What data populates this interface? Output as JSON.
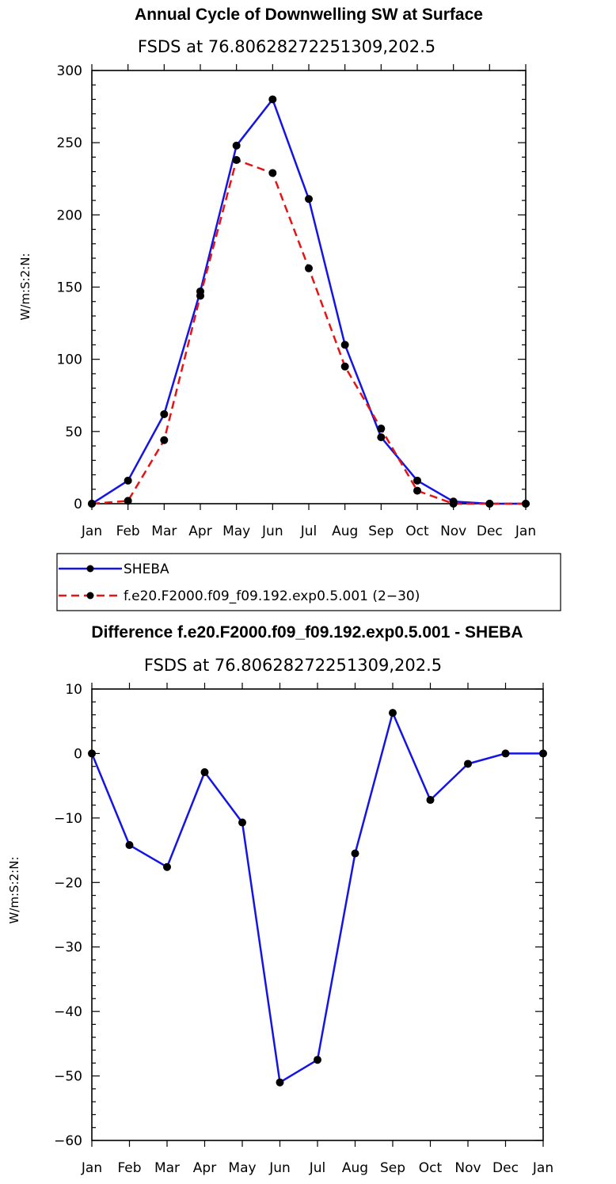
{
  "chart_data": [
    {
      "type": "line",
      "title": "Annual Cycle of Downwelling SW at Surface",
      "subtitle": "FSDS at 76.80628272251309,202.5",
      "xlabel": "",
      "ylabel": "W/m:S:2:N:",
      "categories": [
        "Jan",
        "Feb",
        "Mar",
        "Apr",
        "May",
        "Jun",
        "Jul",
        "Aug",
        "Sep",
        "Oct",
        "Nov",
        "Dec",
        "Jan"
      ],
      "ylim": [
        0,
        300
      ],
      "yticks": [
        "0",
        "50",
        "100",
        "150",
        "200",
        "250",
        "300"
      ],
      "series": [
        {
          "name": "SHEBA",
          "color": "#1414e6",
          "dash": "solid",
          "values": [
            0,
            16,
            62,
            147,
            248,
            280,
            211,
            110,
            46,
            16,
            1.5,
            0,
            0
          ]
        },
        {
          "name": "f.e20.F2000.f09_f09.192.exp0.5.001 (2−30)",
          "color": "#e61414",
          "dash": "dashed",
          "values": [
            0,
            2,
            44,
            144,
            238,
            229,
            163,
            95,
            52,
            9,
            0,
            0,
            0
          ]
        }
      ],
      "legend": "below"
    },
    {
      "type": "line",
      "title": "Difference f.e20.F2000.f09_f09.192.exp0.5.001 - SHEBA",
      "subtitle": "FSDS at 76.80628272251309,202.5",
      "xlabel": "",
      "ylabel": "W/m:S:2:N:",
      "categories": [
        "Jan",
        "Feb",
        "Mar",
        "Apr",
        "May",
        "Jun",
        "Jul",
        "Aug",
        "Sep",
        "Oct",
        "Nov",
        "Dec",
        "Jan"
      ],
      "ylim": [
        -60,
        10
      ],
      "yticks": [
        "−60",
        "−50",
        "−40",
        "−30",
        "−20",
        "−10",
        "0",
        "10"
      ],
      "series": [
        {
          "name": "Difference",
          "color": "#1414e6",
          "dash": "solid",
          "values": [
            0,
            -14.2,
            -17.6,
            -2.9,
            -10.7,
            -51,
            -47.5,
            -15.5,
            6.3,
            -7.2,
            -1.6,
            0,
            0
          ]
        }
      ]
    }
  ]
}
